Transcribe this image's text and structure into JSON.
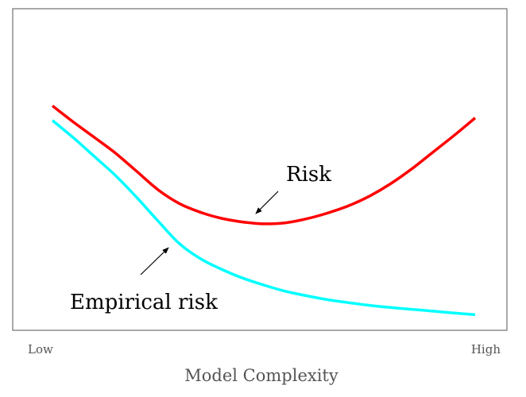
{
  "chart_data": {
    "type": "line",
    "title": "",
    "xlabel": "Model Complexity",
    "ylabel": "",
    "x_tick_labels": [
      "Low",
      "High"
    ],
    "grid": false,
    "legend": "none",
    "xlim": [
      0,
      1
    ],
    "ylim": [
      0,
      1
    ],
    "series": [
      {
        "name": "Risk",
        "color": "#ff0000",
        "x": [
          0.0,
          0.05,
          0.1,
          0.15,
          0.2,
          0.25,
          0.3,
          0.35,
          0.4,
          0.45,
          0.5,
          0.55,
          0.6,
          0.65,
          0.7,
          0.75,
          0.8,
          0.85,
          0.9,
          0.95,
          1.0
        ],
        "y": [
          0.714,
          0.66,
          0.609,
          0.557,
          0.497,
          0.437,
          0.392,
          0.363,
          0.343,
          0.331,
          0.325,
          0.328,
          0.341,
          0.36,
          0.384,
          0.416,
          0.457,
          0.506,
          0.561,
          0.616,
          0.674
        ]
      },
      {
        "name": "Empirical risk",
        "color": "#00ffff",
        "x": [
          0.0,
          0.05,
          0.1,
          0.15,
          0.2,
          0.25,
          0.3,
          0.35,
          0.4,
          0.45,
          0.5,
          0.55,
          0.6,
          0.65,
          0.7,
          0.75,
          0.8,
          0.85,
          0.9,
          0.95,
          1.0
        ],
        "y": [
          0.666,
          0.608,
          0.546,
          0.483,
          0.411,
          0.334,
          0.26,
          0.21,
          0.175,
          0.146,
          0.123,
          0.103,
          0.088,
          0.075,
          0.065,
          0.056,
          0.049,
          0.043,
          0.037,
          0.031,
          0.025
        ]
      }
    ],
    "annotations": [
      {
        "text": "Risk",
        "arrow": "down-left",
        "target_series": "Risk"
      },
      {
        "text": "Empirical risk",
        "arrow": "up-right",
        "target_series": "Empirical risk"
      }
    ]
  }
}
